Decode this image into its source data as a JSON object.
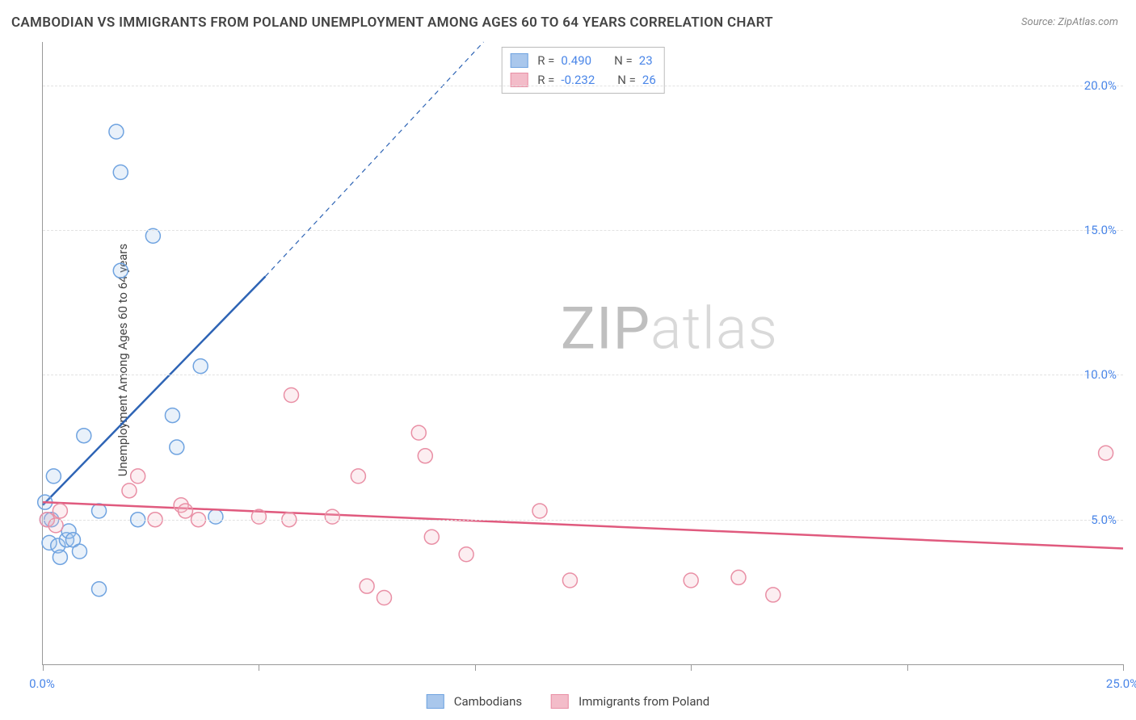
{
  "title": "CAMBODIAN VS IMMIGRANTS FROM POLAND UNEMPLOYMENT AMONG AGES 60 TO 64 YEARS CORRELATION CHART",
  "source_label": "Source: ZipAtlas.com",
  "y_axis_label": "Unemployment Among Ages 60 to 64 years",
  "watermark": {
    "part1": "ZIP",
    "part2": "atlas",
    "color1": "#bfbfbf",
    "color2": "#d9d9d9"
  },
  "chart": {
    "type": "scatter",
    "background_color": "#ffffff",
    "grid_color": "#e2e2e2",
    "axis_color": "#999999",
    "xlim": [
      0,
      25
    ],
    "ylim": [
      0,
      21.5
    ],
    "xticks": [
      0,
      5,
      10,
      15,
      20,
      25
    ],
    "yticks": [
      5,
      10,
      15,
      20
    ],
    "x_tick_labels": {
      "0": "0.0%",
      "25": "25.0%"
    },
    "y_tick_labels": {
      "5": "5.0%",
      "10": "10.0%",
      "15": "15.0%",
      "20": "20.0%"
    },
    "x_label_color": "#4a86e8",
    "y_label_color": "#4a86e8",
    "marker_radius": 9,
    "marker_stroke_width": 1.5,
    "marker_fill_opacity": 0.25,
    "line_width": 2.5,
    "dash_pattern": "6,5",
    "series": [
      {
        "key": "cambodians",
        "label": "Cambodians",
        "color_stroke": "#6fa3e0",
        "color_fill": "#a9c7ec",
        "line_color": "#2e64b5",
        "R": "0.490",
        "N": "23",
        "points": [
          [
            0.05,
            5.6
          ],
          [
            0.1,
            5.0
          ],
          [
            0.15,
            4.2
          ],
          [
            0.2,
            5.0
          ],
          [
            0.25,
            6.5
          ],
          [
            0.35,
            4.1
          ],
          [
            0.4,
            3.7
          ],
          [
            0.55,
            4.3
          ],
          [
            0.6,
            4.6
          ],
          [
            0.7,
            4.3
          ],
          [
            0.85,
            3.9
          ],
          [
            0.95,
            7.9
          ],
          [
            1.3,
            5.3
          ],
          [
            1.3,
            2.6
          ],
          [
            1.7,
            18.4
          ],
          [
            1.8,
            13.6
          ],
          [
            1.8,
            17.0
          ],
          [
            2.2,
            5.0
          ],
          [
            2.55,
            14.8
          ],
          [
            3.0,
            8.6
          ],
          [
            3.1,
            7.5
          ],
          [
            3.65,
            10.3
          ],
          [
            4.0,
            5.1
          ]
        ],
        "regression": {
          "solid": [
            [
              0.0,
              5.5
            ],
            [
              5.15,
              13.4
            ]
          ],
          "dashed": [
            [
              5.15,
              13.4
            ],
            [
              10.2,
              21.5
            ]
          ]
        }
      },
      {
        "key": "poland",
        "label": "Immigrants from Poland",
        "color_stroke": "#e98fa5",
        "color_fill": "#f3bcc9",
        "line_color": "#e05a7e",
        "R": "-0.232",
        "N": "26",
        "points": [
          [
            0.1,
            5.0
          ],
          [
            0.3,
            4.8
          ],
          [
            0.4,
            5.3
          ],
          [
            2.0,
            6.0
          ],
          [
            2.2,
            6.5
          ],
          [
            2.6,
            5.0
          ],
          [
            3.2,
            5.5
          ],
          [
            3.3,
            5.3
          ],
          [
            3.6,
            5.0
          ],
          [
            5.0,
            5.1
          ],
          [
            5.7,
            5.0
          ],
          [
            5.75,
            9.3
          ],
          [
            6.7,
            5.1
          ],
          [
            7.3,
            6.5
          ],
          [
            7.5,
            2.7
          ],
          [
            7.9,
            2.3
          ],
          [
            8.7,
            8.0
          ],
          [
            8.85,
            7.2
          ],
          [
            9.0,
            4.4
          ],
          [
            9.8,
            3.8
          ],
          [
            11.5,
            5.3
          ],
          [
            12.2,
            2.9
          ],
          [
            15.0,
            2.9
          ],
          [
            16.1,
            3.0
          ],
          [
            16.9,
            2.4
          ],
          [
            24.6,
            7.3
          ]
        ],
        "regression": {
          "solid": [
            [
              0.0,
              5.6
            ],
            [
              25.0,
              4.0
            ]
          ],
          "dashed": null
        }
      }
    ]
  },
  "legend_top": {
    "R_label": "R  =",
    "N_label": "N  =",
    "value_color": "#4a86e8",
    "text_color": "#555555"
  },
  "legend_bottom": {
    "items": [
      "Cambodians",
      "Immigrants from Poland"
    ]
  }
}
